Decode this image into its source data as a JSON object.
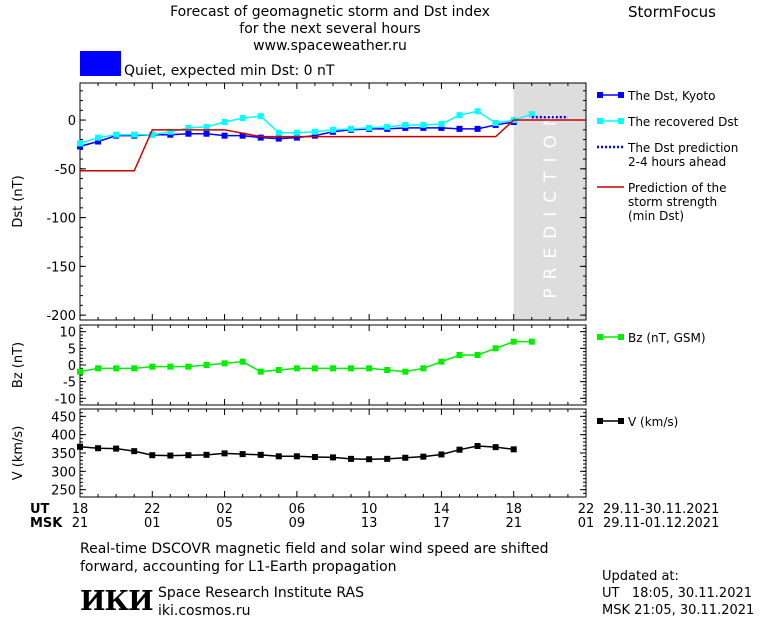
{
  "header": {
    "title_line1": "Forecast of geomagnetic storm and Dst index",
    "title_line2": "for the next several hours",
    "url": "www.spaceweather.ru",
    "brand": "StormFocus"
  },
  "status": {
    "text": "Quiet, expected min Dst: 0 nT",
    "color": "#0000ff"
  },
  "chart_data": [
    {
      "type": "line",
      "panel": "dst",
      "ylabel": "Dst (nT)",
      "ylim": [
        -205,
        38
      ],
      "yticks": [
        0,
        -50,
        -100,
        -150,
        -200
      ],
      "xlim": [
        18,
        46
      ],
      "prediction_band": {
        "from": 42.0,
        "to": 46.0,
        "label": "PREDICTION",
        "color": "#dddddd"
      },
      "series": [
        {
          "name": "The Dst, Kyoto",
          "color": "#0000ff",
          "marker": "square",
          "x": [
            18,
            19,
            20,
            21,
            22,
            23,
            24,
            25,
            26,
            27,
            28,
            29,
            30,
            31,
            32,
            33,
            34,
            35,
            36,
            37,
            38,
            39,
            40,
            41,
            42
          ],
          "y": [
            -27,
            -22,
            -16,
            -16,
            -15,
            -15,
            -14,
            -14,
            -16,
            -16,
            -18,
            -19,
            -18,
            -16,
            -12,
            -10,
            -9,
            -9,
            -8,
            -8,
            -8,
            -9,
            -9,
            -5,
            -2
          ]
        },
        {
          "name": "The recovered Dst",
          "color": "#00ffff",
          "marker": "square",
          "x": [
            18,
            19,
            20,
            21,
            22,
            23,
            24,
            25,
            26,
            27,
            28,
            29,
            30,
            31,
            32,
            33,
            34,
            35,
            36,
            37,
            38,
            39,
            40,
            41,
            42,
            43
          ],
          "y": [
            -24,
            -18,
            -15,
            -15,
            -15,
            -12,
            -8,
            -7,
            -2,
            2,
            4,
            -13,
            -13,
            -12,
            -10,
            -9,
            -8,
            -7,
            -5,
            -5,
            -4,
            5,
            9,
            -3,
            0,
            6
          ]
        },
        {
          "name": "The Dst prediction 2-4 hours ahead",
          "color": "#0000ff",
          "dotted": true,
          "x": [
            43,
            44,
            45
          ],
          "y": [
            3,
            3,
            3
          ]
        },
        {
          "name": "Prediction of the storm strength (min Dst)",
          "color": "#cc0000",
          "step": true,
          "x": [
            18,
            21,
            22,
            26,
            28,
            41,
            42,
            46
          ],
          "y": [
            -52,
            -52,
            -10,
            -10,
            -17,
            -17,
            0,
            0
          ]
        }
      ],
      "legend": [
        {
          "label": "The Dst, Kyoto",
          "lines": [
            "The Dst, Kyoto"
          ],
          "color": "#0000ff",
          "style": "marker"
        },
        {
          "label": "The recovered Dst",
          "lines": [
            "The recovered Dst"
          ],
          "color": "#00ffff",
          "style": "marker"
        },
        {
          "label": "The Dst prediction 2-4 hours ahead",
          "lines": [
            "The Dst prediction",
            "2-4 hours ahead"
          ],
          "color": "#0000ff",
          "style": "dotted"
        },
        {
          "label": "Prediction of the storm strength (min Dst)",
          "lines": [
            "Prediction of the",
            "storm strength",
            "(min Dst)"
          ],
          "color": "#cc0000",
          "style": "solid"
        }
      ]
    },
    {
      "type": "line",
      "panel": "bz",
      "ylabel": "Bz (nT)",
      "ylim": [
        -12,
        12
      ],
      "yticks": [
        10,
        5,
        0,
        -5,
        -10
      ],
      "xlim": [
        18,
        46
      ],
      "series": [
        {
          "name": "Bz (nT, GSM)",
          "color": "#00ee00",
          "marker": "square",
          "x": [
            18,
            19,
            20,
            21,
            22,
            23,
            24,
            25,
            26,
            27,
            28,
            29,
            30,
            31,
            32,
            33,
            34,
            35,
            36,
            37,
            38,
            39,
            40,
            41,
            42,
            43
          ],
          "y": [
            -2,
            -1,
            -1,
            -1,
            -0.5,
            -0.5,
            -0.5,
            0,
            0.5,
            1,
            -2,
            -1.5,
            -1,
            -1,
            -1,
            -1,
            -1,
            -1.5,
            -2,
            -1,
            1,
            3,
            3,
            5,
            7,
            7
          ]
        }
      ],
      "legend": [
        {
          "label": "Bz (nT, GSM)",
          "lines": [
            "Bz (nT, GSM)"
          ],
          "color": "#00ee00",
          "style": "marker"
        }
      ]
    },
    {
      "type": "line",
      "panel": "v",
      "ylabel": "V (km/s)",
      "ylim": [
        230,
        470
      ],
      "yticks": [
        450,
        400,
        350,
        300,
        250
      ],
      "xlim": [
        18,
        46
      ],
      "series": [
        {
          "name": "V (km/s)",
          "color": "#000000",
          "marker": "square",
          "x": [
            18,
            19,
            20,
            21,
            22,
            23,
            24,
            25,
            26,
            27,
            28,
            29,
            30,
            31,
            32,
            33,
            34,
            35,
            36,
            37,
            38,
            39,
            40,
            41,
            42
          ],
          "y": [
            367,
            363,
            362,
            355,
            344,
            343,
            344,
            345,
            349,
            347,
            345,
            341,
            341,
            339,
            338,
            334,
            333,
            334,
            337,
            340,
            346,
            359,
            369,
            366,
            360
          ]
        }
      ],
      "legend": [
        {
          "label": "V (km/s)",
          "lines": [
            "V (km/s)"
          ],
          "color": "#000000",
          "style": "marker"
        }
      ]
    }
  ],
  "time_axis": {
    "ut_label": "UT",
    "msk_label": "MSK",
    "ut_ticks": [
      "18",
      "22",
      "02",
      "06",
      "10",
      "14",
      "18",
      "22"
    ],
    "msk_ticks": [
      "21",
      "01",
      "05",
      "09",
      "13",
      "17",
      "21",
      "01"
    ],
    "tick_x": [
      18,
      22,
      26,
      30,
      34,
      38,
      42,
      46
    ],
    "ut_date": "29.11-30.11.2021",
    "msk_date": "29.11-01.12.2021"
  },
  "footer": {
    "note_line1": "Real-time DSCOVR magnetic field and solar wind speed are shifted",
    "note_line2": "forward, accounting for L1-Earth propagation",
    "logo": "ИКИ",
    "institute": "Space Research Institute RAS",
    "site": "iki.cosmos.ru",
    "updated_label": "Updated at:",
    "updated_ut": "UT   18:05, 30.11.2021",
    "updated_msk": "MSK 21:05, 30.11.2021"
  }
}
